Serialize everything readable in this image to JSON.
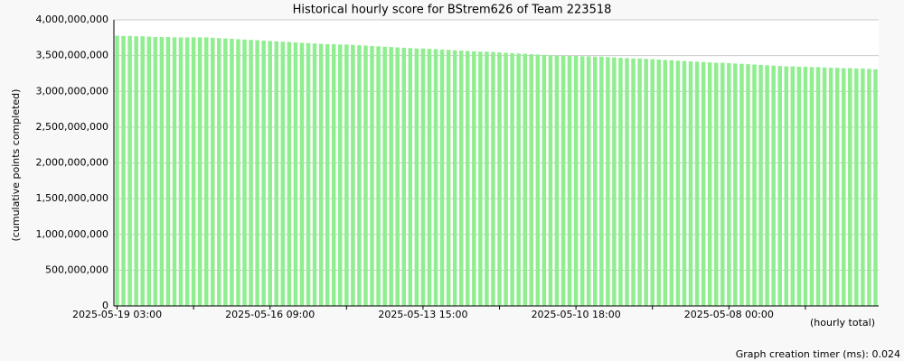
{
  "chart_data": {
    "type": "bar",
    "title": "Historical hourly score for BStrem626 of Team 223518",
    "y_label": "(cumulative points completed)",
    "x_label": "(hourly total)",
    "footer": "Graph creation timer (ms): 0.024",
    "color": "#90ee90",
    "grid": true,
    "ylim": [
      0,
      4000000000
    ],
    "yticks": [
      0,
      {
        "value": 500000000,
        "label": "500,000,000"
      },
      {
        "value": 1000000000,
        "label": "1,000,000,000"
      },
      {
        "value": 1500000000,
        "label": "1,500,000,000"
      },
      {
        "value": 2000000000,
        "label": "2,000,000,000"
      },
      {
        "value": 2500000000,
        "label": "2,500,000,000"
      },
      {
        "value": 3000000000,
        "label": "3,000,000,000"
      },
      {
        "value": 3500000000,
        "label": "3,500,000,000"
      },
      {
        "value": 4000000000,
        "label": "4,000,000,000"
      }
    ],
    "categories": [
      "2025-05-19 03:00",
      null,
      null,
      null,
      null,
      null,
      null,
      null,
      null,
      null,
      null,
      null,
      null,
      null,
      null,
      null,
      null,
      null,
      null,
      null,
      null,
      null,
      null,
      null,
      "2025-05-16 09:00",
      null,
      null,
      null,
      null,
      null,
      null,
      null,
      null,
      null,
      null,
      null,
      null,
      null,
      null,
      null,
      null,
      null,
      null,
      null,
      null,
      null,
      null,
      null,
      "2025-05-13 15:00",
      null,
      null,
      null,
      null,
      null,
      null,
      null,
      null,
      null,
      null,
      null,
      null,
      null,
      null,
      null,
      null,
      null,
      null,
      null,
      null,
      null,
      null,
      null,
      "2025-05-10 18:00",
      null,
      null,
      null,
      null,
      null,
      null,
      null,
      null,
      null,
      null,
      null,
      null,
      null,
      null,
      null,
      null,
      null,
      null,
      null,
      null,
      null,
      null,
      null,
      "2025-05-08 00:00",
      null,
      null,
      null,
      null,
      null,
      null,
      null,
      null,
      null,
      null,
      null,
      null,
      null,
      null,
      null,
      null,
      null,
      null,
      null,
      null,
      null,
      null,
      null
    ],
    "values": [
      3780000000,
      3775000000,
      3775000000,
      3770000000,
      3770000000,
      3765000000,
      3760000000,
      3760000000,
      3760000000,
      3755000000,
      3755000000,
      3755000000,
      3755000000,
      3755000000,
      3755000000,
      3750000000,
      3745000000,
      3740000000,
      3735000000,
      3730000000,
      3725000000,
      3720000000,
      3715000000,
      3710000000,
      3705000000,
      3700000000,
      3695000000,
      3690000000,
      3685000000,
      3680000000,
      3675000000,
      3670000000,
      3665000000,
      3660000000,
      3660000000,
      3655000000,
      3655000000,
      3650000000,
      3645000000,
      3640000000,
      3635000000,
      3630000000,
      3625000000,
      3620000000,
      3615000000,
      3610000000,
      3605000000,
      3600000000,
      3600000000,
      3595000000,
      3590000000,
      3585000000,
      3580000000,
      3575000000,
      3570000000,
      3565000000,
      3560000000,
      3555000000,
      3555000000,
      3550000000,
      3545000000,
      3540000000,
      3535000000,
      3530000000,
      3525000000,
      3520000000,
      3515000000,
      3510000000,
      3505000000,
      3500000000,
      3500000000,
      3495000000,
      3495000000,
      3490000000,
      3490000000,
      3485000000,
      3485000000,
      3480000000,
      3475000000,
      3470000000,
      3465000000,
      3460000000,
      3460000000,
      3455000000,
      3450000000,
      3445000000,
      3440000000,
      3435000000,
      3430000000,
      3425000000,
      3420000000,
      3415000000,
      3410000000,
      3405000000,
      3400000000,
      3400000000,
      3395000000,
      3390000000,
      3385000000,
      3380000000,
      3375000000,
      3370000000,
      3365000000,
      3360000000,
      3355000000,
      3350000000,
      3350000000,
      3345000000,
      3345000000,
      3340000000,
      3340000000,
      3335000000,
      3330000000,
      3330000000,
      3325000000,
      3325000000,
      3320000000,
      3320000000,
      3315000000,
      3310000000
    ]
  }
}
